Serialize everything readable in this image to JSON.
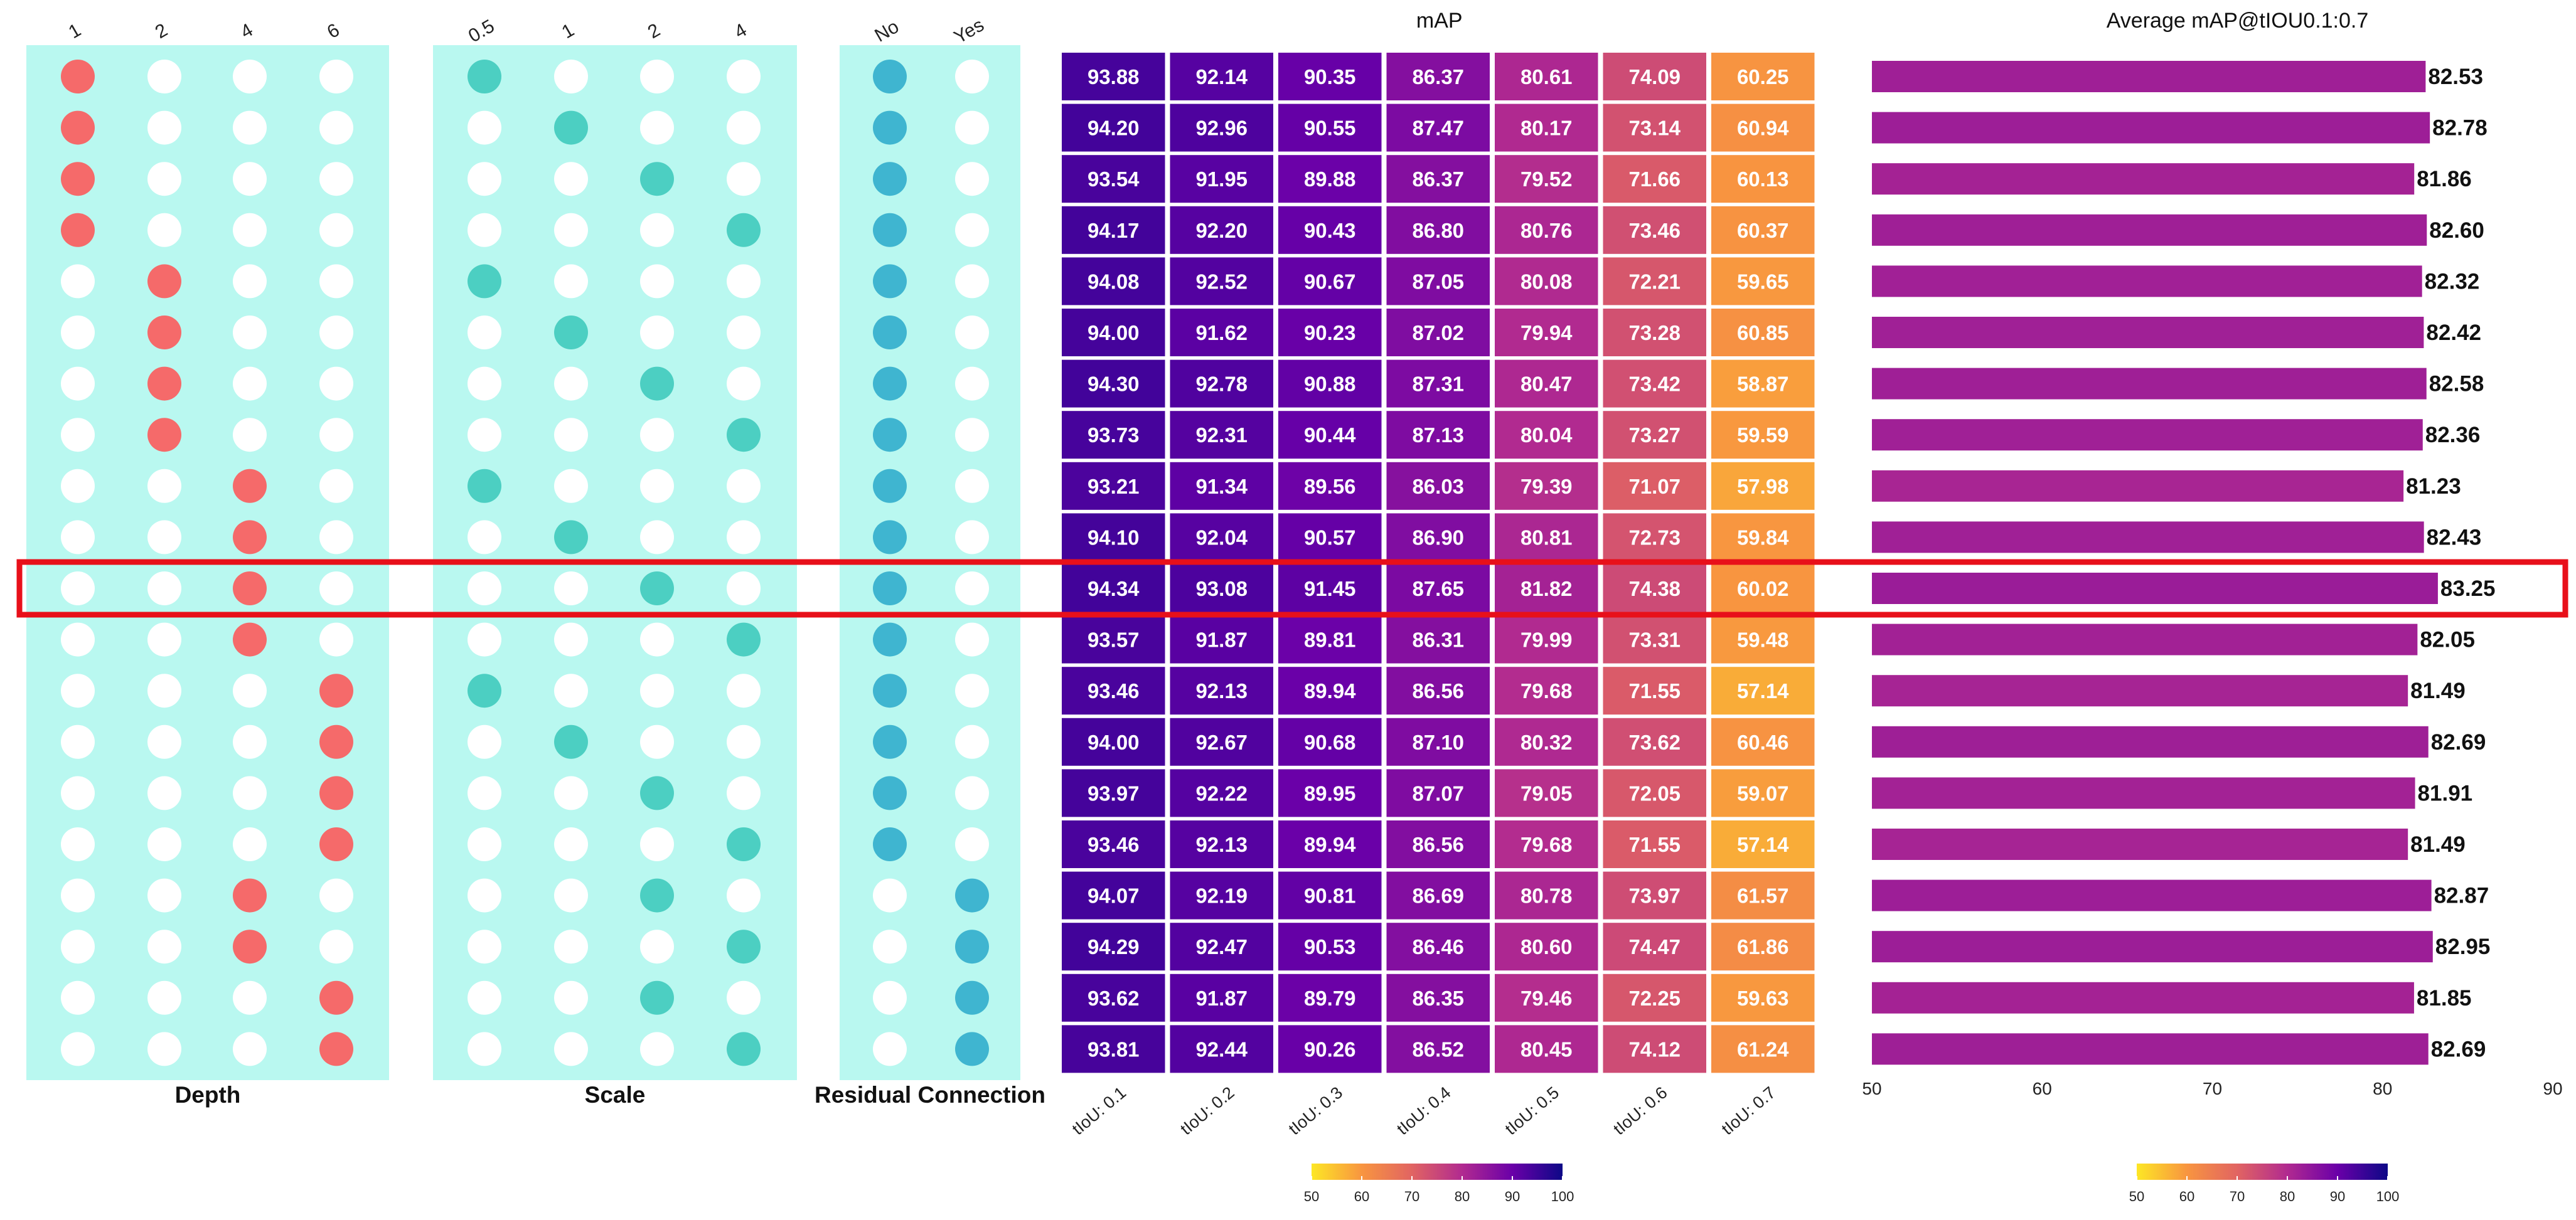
{
  "chart_data": {
    "type": "heatmap",
    "config_panels": [
      {
        "name": "Depth",
        "columns": [
          "1",
          "2",
          "4",
          "6"
        ],
        "color": "#f56a6a"
      },
      {
        "name": "Scale",
        "columns": [
          "0.5",
          "1",
          "2",
          "4"
        ],
        "color": "#4ccfc2"
      },
      {
        "name": "Residual Connection",
        "columns": [
          "No",
          "Yes"
        ],
        "color": "#3fb5d0"
      }
    ],
    "rows": [
      {
        "depth": "1",
        "scale": "0.5",
        "residual": "No"
      },
      {
        "depth": "1",
        "scale": "1",
        "residual": "No"
      },
      {
        "depth": "1",
        "scale": "2",
        "residual": "No"
      },
      {
        "depth": "1",
        "scale": "4",
        "residual": "No"
      },
      {
        "depth": "2",
        "scale": "0.5",
        "residual": "No"
      },
      {
        "depth": "2",
        "scale": "1",
        "residual": "No"
      },
      {
        "depth": "2",
        "scale": "2",
        "residual": "No"
      },
      {
        "depth": "2",
        "scale": "4",
        "residual": "No"
      },
      {
        "depth": "4",
        "scale": "0.5",
        "residual": "No"
      },
      {
        "depth": "4",
        "scale": "1",
        "residual": "No"
      },
      {
        "depth": "4",
        "scale": "2",
        "residual": "No"
      },
      {
        "depth": "4",
        "scale": "4",
        "residual": "No"
      },
      {
        "depth": "6",
        "scale": "0.5",
        "residual": "No"
      },
      {
        "depth": "6",
        "scale": "1",
        "residual": "No"
      },
      {
        "depth": "6",
        "scale": "2",
        "residual": "No"
      },
      {
        "depth": "6",
        "scale": "4",
        "residual": "No"
      },
      {
        "depth": "4",
        "scale": "2",
        "residual": "Yes"
      },
      {
        "depth": "4",
        "scale": "4",
        "residual": "Yes"
      },
      {
        "depth": "6",
        "scale": "2",
        "residual": "Yes"
      },
      {
        "depth": "6",
        "scale": "4",
        "residual": "Yes"
      }
    ],
    "heatmap": {
      "title": "mAP",
      "columns": [
        "tIoU: 0.1",
        "tIoU: 0.2",
        "tIoU: 0.3",
        "tIoU: 0.4",
        "tIoU: 0.5",
        "tIoU: 0.6",
        "tIoU: 0.7"
      ],
      "values": [
        [
          "93.88",
          "92.14",
          "90.35",
          "86.37",
          "80.61",
          "74.09",
          "60.25"
        ],
        [
          "94.20",
          "92.96",
          "90.55",
          "87.47",
          "80.17",
          "73.14",
          "60.94"
        ],
        [
          "93.54",
          "91.95",
          "89.88",
          "86.37",
          "79.52",
          "71.66",
          "60.13"
        ],
        [
          "94.17",
          "92.20",
          "90.43",
          "86.80",
          "80.76",
          "73.46",
          "60.37"
        ],
        [
          "94.08",
          "92.52",
          "90.67",
          "87.05",
          "80.08",
          "72.21",
          "59.65"
        ],
        [
          "94.00",
          "91.62",
          "90.23",
          "87.02",
          "79.94",
          "73.28",
          "60.85"
        ],
        [
          "94.30",
          "92.78",
          "90.88",
          "87.31",
          "80.47",
          "73.42",
          "58.87"
        ],
        [
          "93.73",
          "92.31",
          "90.44",
          "87.13",
          "80.04",
          "73.27",
          "59.59"
        ],
        [
          "93.21",
          "91.34",
          "89.56",
          "86.03",
          "79.39",
          "71.07",
          "57.98"
        ],
        [
          "94.10",
          "92.04",
          "90.57",
          "86.90",
          "80.81",
          "72.73",
          "59.84"
        ],
        [
          "94.34",
          "93.08",
          "91.45",
          "87.65",
          "81.82",
          "74.38",
          "60.02"
        ],
        [
          "93.57",
          "91.87",
          "89.81",
          "86.31",
          "79.99",
          "73.31",
          "59.48"
        ],
        [
          "93.46",
          "92.13",
          "89.94",
          "86.56",
          "79.68",
          "71.55",
          "57.14"
        ],
        [
          "94.00",
          "92.67",
          "90.68",
          "87.10",
          "80.32",
          "73.62",
          "60.46"
        ],
        [
          "93.97",
          "92.22",
          "89.95",
          "87.07",
          "79.05",
          "72.05",
          "59.07"
        ],
        [
          "93.46",
          "92.13",
          "89.94",
          "86.56",
          "79.68",
          "71.55",
          "57.14"
        ],
        [
          "94.07",
          "92.19",
          "90.81",
          "86.69",
          "80.78",
          "73.97",
          "61.57"
        ],
        [
          "94.29",
          "92.47",
          "90.53",
          "86.46",
          "80.60",
          "74.47",
          "61.86"
        ],
        [
          "93.62",
          "91.87",
          "89.79",
          "86.35",
          "79.46",
          "72.25",
          "59.63"
        ],
        [
          "93.81",
          "92.44",
          "90.26",
          "86.52",
          "80.45",
          "74.12",
          "61.24"
        ]
      ],
      "color_range": [
        50,
        100
      ]
    },
    "bar": {
      "title": "Average mAP@tIOU0.1:0.7",
      "values": [
        "82.53",
        "82.78",
        "81.86",
        "82.60",
        "82.32",
        "82.42",
        "82.58",
        "82.36",
        "81.23",
        "82.43",
        "83.25",
        "82.05",
        "81.49",
        "82.69",
        "81.91",
        "81.49",
        "82.87",
        "82.95",
        "81.85",
        "82.69"
      ],
      "xlim": [
        50,
        90
      ],
      "xticks": [
        "50",
        "60",
        "70",
        "80",
        "90"
      ],
      "color_range": [
        50,
        100
      ]
    },
    "colorbar_ticks": [
      "50",
      "60",
      "70",
      "80",
      "90",
      "100"
    ],
    "highlighted_row": 10,
    "highlight_color": "#e8101a",
    "panel_bg": "#b9f8f0",
    "colormap": [
      "#fde725",
      "#f89540",
      "#e16462",
      "#b12a90",
      "#6a00a8",
      "#0d0887"
    ]
  }
}
